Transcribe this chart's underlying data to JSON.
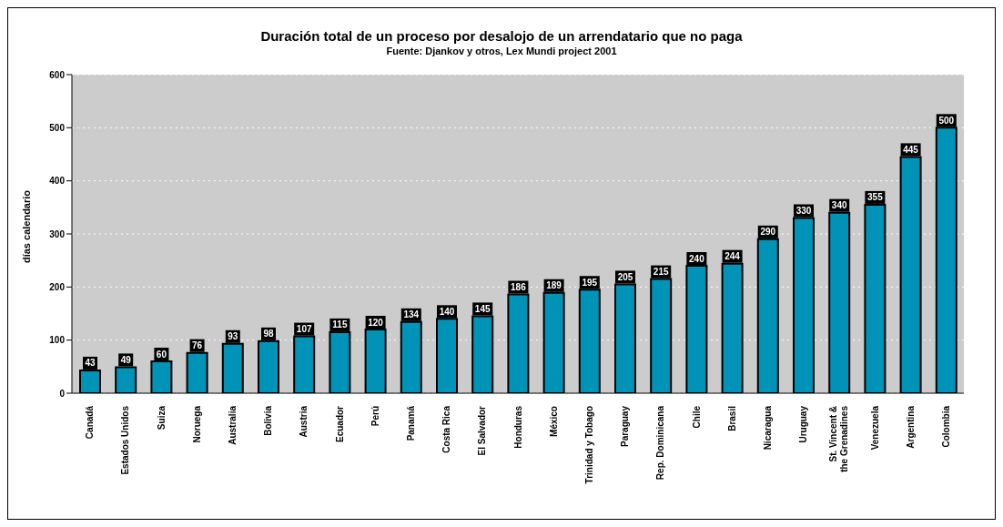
{
  "chart_data": {
    "type": "bar",
    "title": "Duración total de un proceso por desalojo de un arrendatario que no paga",
    "subtitle": "Fuente: Djankov y otros, Lex Mundi project 2001",
    "ylabel": "días calendario",
    "categories": [
      "Canadá",
      "Estados Unidos",
      "Suiza",
      "Noruega",
      "Australia",
      "Bolivia",
      "Austria",
      "Ecuador",
      "Perú",
      "Panamá",
      "Costa Rica",
      "El Salvador",
      "Honduras",
      "México",
      "Trinidad y Tobago",
      "Paraguay",
      "Rep. Dominicana",
      "Chile",
      "Brasil",
      "Nicaragua",
      "Uruguay",
      "St. Vincent & the Grenadines",
      "Venezuela",
      "Argentina",
      "Colombia"
    ],
    "values": [
      43,
      49,
      60,
      76,
      93,
      98,
      107,
      115,
      120,
      134,
      140,
      145,
      186,
      189,
      195,
      205,
      215,
      240,
      244,
      290,
      330,
      340,
      355,
      445,
      500
    ],
    "color": "#0093b8",
    "data_labels": true,
    "ylim": [
      0,
      600
    ],
    "yticks": [
      0,
      100,
      200,
      300,
      400,
      500,
      600
    ],
    "grid": "y"
  }
}
